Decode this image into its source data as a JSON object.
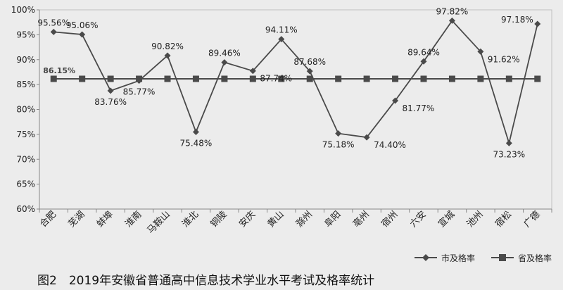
{
  "chart_data": {
    "type": "line",
    "title": "",
    "caption": "图2　2019年安徽省普通高中信息技术学业水平考试及格率统计",
    "xlabel": "",
    "ylabel": "",
    "ylim": [
      60,
      100
    ],
    "yticks": [
      "60%",
      "65%",
      "70%",
      "75%",
      "80%",
      "85%",
      "90%",
      "95%",
      "100%"
    ],
    "ytick_values": [
      60,
      65,
      70,
      75,
      80,
      85,
      90,
      95,
      100
    ],
    "grid": false,
    "legend_position": "bottom-right",
    "categories": [
      "合肥",
      "芜湖",
      "蚌埠",
      "淮南",
      "马鞍山",
      "淮北",
      "铜陵",
      "安庆",
      "黄山",
      "滁州",
      "阜阳",
      "亳州",
      "宿州",
      "六安",
      "宣城",
      "池州",
      "宿松",
      "广德"
    ],
    "series": [
      {
        "name": "市及格率",
        "marker": "diamond",
        "color": "#4a4a4a",
        "values": [
          95.56,
          95.06,
          83.76,
          85.77,
          90.82,
          75.48,
          89.46,
          87.74,
          94.11,
          87.68,
          75.18,
          74.4,
          81.77,
          89.64,
          97.82,
          91.62,
          73.23,
          97.18
        ],
        "labels": [
          "95.56%",
          "95.06%",
          "83.76%",
          "85.77%",
          "90.82%",
          "75.48%",
          "89.46%",
          "87.74%",
          "94.11%",
          "87.68%",
          "75.18%",
          "74.40%",
          "81.77%",
          "89.64%",
          "97.82%",
          "91.62%",
          "73.23%",
          "97.18%"
        ]
      },
      {
        "name": "省及格率",
        "marker": "square",
        "color": "#4a4a4a",
        "values": [
          86.15,
          86.15,
          86.15,
          86.15,
          86.15,
          86.15,
          86.15,
          86.15,
          86.15,
          86.15,
          86.15,
          86.15,
          86.15,
          86.15,
          86.15,
          86.15,
          86.15,
          86.15
        ],
        "label": "86.15%"
      }
    ]
  }
}
